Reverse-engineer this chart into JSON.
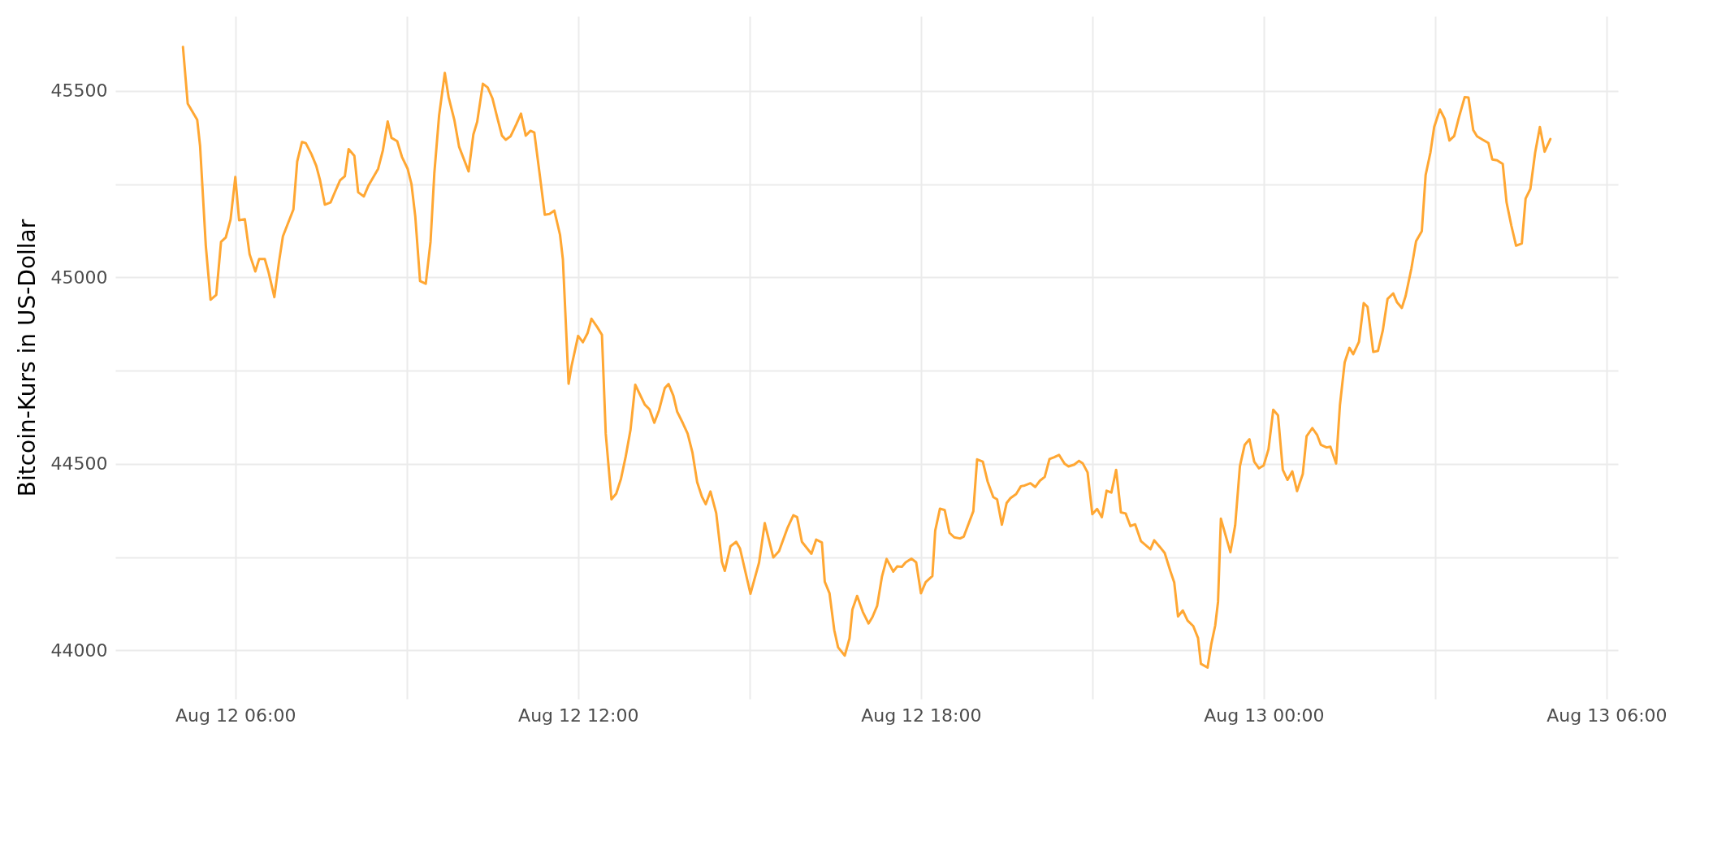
{
  "chart_data": {
    "type": "line",
    "ylabel": "Bitcoin-Kurs in US-Dollar",
    "x": [
      "--08-12T05:05",
      "--08-12T05:10",
      "--08-12T05:15",
      "--08-12T05:20",
      "--08-12T05:23",
      "--08-12T05:29",
      "--08-12T05:34",
      "--08-12T05:40",
      "--08-12T05:45",
      "--08-12T05:50",
      "--08-12T05:55",
      "--08-12T06:00",
      "--08-12T06:04",
      "--08-12T06:10",
      "--08-12T06:15",
      "--08-12T06:21",
      "--08-12T06:25",
      "--08-12T06:31",
      "--08-12T06:35",
      "--08-12T06:41",
      "--08-12T06:46",
      "--08-12T06:50",
      "--08-12T07:01",
      "--08-12T07:05",
      "--08-12T07:10",
      "--08-12T07:14",
      "--08-12T07:20",
      "--08-12T07:25",
      "--08-12T07:29",
      "--08-12T07:34",
      "--08-12T07:40",
      "--08-12T07:44",
      "--08-12T07:50",
      "--08-12T07:55",
      "--08-12T07:59",
      "--08-12T08:05",
      "--08-12T08:09",
      "--08-12T08:15",
      "--08-12T08:20",
      "--08-12T08:30",
      "--08-12T08:35",
      "--08-12T08:40",
      "--08-12T08:44",
      "--08-12T08:50",
      "--08-12T08:55",
      "--08-12T09:01",
      "--08-12T09:05",
      "--08-12T09:09",
      "--08-12T09:14",
      "--08-12T09:20",
      "--08-12T09:25",
      "--08-12T09:29",
      "--08-12T09:34",
      "--08-12T09:40",
      "--08-12T09:44",
      "--08-12T09:50",
      "--08-12T09:55",
      "--08-12T10:05",
      "--08-12T10:10",
      "--08-12T10:14",
      "--08-12T10:20",
      "--08-12T10:25",
      "--08-12T10:30",
      "--08-12T10:35",
      "--08-12T10:40",
      "--08-12T10:44",
      "--08-12T10:49",
      "--08-12T10:55",
      "--08-12T11:00",
      "--08-12T11:05",
      "--08-12T11:10",
      "--08-12T11:14",
      "--08-12T11:20",
      "--08-12T11:25",
      "--08-12T11:30",
      "--08-12T11:35",
      "--08-12T11:41",
      "--08-12T11:44",
      "--08-12T11:50",
      "--08-12T11:53",
      "--08-12T12:00",
      "--08-12T12:05",
      "--08-12T12:10",
      "--08-12T12:14",
      "--08-12T12:20",
      "--08-12T12:25",
      "--08-12T12:29",
      "--08-12T12:35",
      "--08-12T12:40",
      "--08-12T12:45",
      "--08-12T12:50",
      "--08-12T12:55",
      "--08-12T13:00",
      "--08-12T13:10",
      "--08-12T13:15",
      "--08-12T13:20",
      "--08-12T13:25",
      "--08-12T13:31",
      "--08-12T13:35",
      "--08-12T13:40",
      "--08-12T13:44",
      "--08-12T13:50",
      "--08-12T13:55",
      "--08-12T14:00",
      "--08-12T14:05",
      "--08-12T14:10",
      "--08-12T14:14",
      "--08-12T14:19",
      "--08-12T14:25",
      "--08-12T14:31",
      "--08-12T14:34",
      "--08-12T14:40",
      "--08-12T14:46",
      "--08-12T14:50",
      "--08-12T15:01",
      "--08-12T15:10",
      "--08-12T15:16",
      "--08-12T15:25",
      "--08-12T15:31",
      "--08-12T15:40",
      "--08-12T15:46",
      "--08-12T15:50",
      "--08-12T15:55",
      "--08-12T16:05",
      "--08-12T16:10",
      "--08-12T16:16",
      "--08-12T16:19",
      "--08-12T16:24",
      "--08-12T16:29",
      "--08-12T16:33",
      "--08-12T16:40",
      "--08-12T16:45",
      "--08-12T16:48",
      "--08-12T16:53",
      "--08-12T16:59",
      "--08-12T17:05",
      "--08-12T17:09",
      "--08-12T17:14",
      "--08-12T17:19",
      "--08-12T17:24",
      "--08-12T17:31",
      "--08-12T17:35",
      "--08-12T17:40",
      "--08-12T17:44",
      "--08-12T17:50",
      "--08-12T17:55",
      "--08-12T18:00",
      "--08-12T18:05",
      "--08-12T18:12",
      "--08-12T18:15",
      "--08-12T18:20",
      "--08-12T18:25",
      "--08-12T18:30",
      "--08-12T18:35",
      "--08-12T18:41",
      "--08-12T18:45",
      "--08-12T18:55",
      "--08-12T18:59",
      "--08-12T19:05",
      "--08-12T19:10",
      "--08-12T19:16",
      "--08-12T19:20",
      "--08-12T19:25",
      "--08-12T19:30",
      "--08-12T19:34",
      "--08-12T19:40",
      "--08-12T19:45",
      "--08-12T19:49",
      "--08-12T19:55",
      "--08-12T20:00",
      "--08-12T20:05",
      "--08-12T20:10",
      "--08-12T20:15",
      "--08-12T20:20",
      "--08-12T20:25",
      "--08-12T20:31",
      "--08-12T20:35",
      "--08-12T20:41",
      "--08-12T20:46",
      "--08-12T20:50",
      "--08-12T20:55",
      "--08-12T21:00",
      "--08-12T21:05",
      "--08-12T21:10",
      "--08-12T21:15",
      "--08-12T21:20",
      "--08-12T21:25",
      "--08-12T21:30",
      "--08-12T21:35",
      "--08-12T21:40",
      "--08-12T21:45",
      "--08-12T21:51",
      "--08-12T22:01",
      "--08-12T22:05",
      "--08-12T22:11",
      "--08-12T22:16",
      "--08-12T22:22",
      "--08-12T22:26",
      "--08-12T22:30",
      "--08-12T22:35",
      "--08-12T22:40",
      "--08-12T22:46",
      "--08-12T22:51",
      "--08-12T22:54",
      "--08-12T23:01",
      "--08-12T23:05",
      "--08-12T23:09",
      "--08-12T23:12",
      "--08-12T23:15",
      "--08-12T23:25",
      "--08-12T23:30",
      "--08-12T23:35",
      "--08-12T23:40",
      "--08-12T23:45",
      "--08-12T23:50",
      "--08-12T23:55",
      "--08-13T00:00",
      "--08-13T00:05",
      "--08-13T00:10",
      "--08-13T00:15",
      "--08-13T00:20",
      "--08-13T00:25",
      "--08-13T00:30",
      "--08-13T00:35",
      "--08-13T00:41",
      "--08-13T00:45",
      "--08-13T00:51",
      "--08-13T00:56",
      "--08-13T01:00",
      "--08-13T01:06",
      "--08-13T01:10",
      "--08-13T01:16",
      "--08-13T01:20",
      "--08-13T01:25",
      "--08-13T01:30",
      "--08-13T01:34",
      "--08-13T01:40",
      "--08-13T01:45",
      "--08-13T01:49",
      "--08-13T01:55",
      "--08-13T02:00",
      "--08-13T02:05",
      "--08-13T02:10",
      "--08-13T02:16",
      "--08-13T02:20",
      "--08-13T02:25",
      "--08-13T02:29",
      "--08-13T02:35",
      "--08-13T02:40",
      "--08-13T02:46",
      "--08-13T02:50",
      "--08-13T02:55",
      "--08-13T02:59",
      "--08-13T03:05",
      "--08-13T03:10",
      "--08-13T03:15",
      "--08-13T03:20",
      "--08-13T03:25",
      "--08-13T03:31",
      "--08-13T03:35",
      "--08-13T03:40",
      "--08-13T03:44",
      "--08-13T03:50",
      "--08-13T03:56",
      "--08-13T04:00",
      "--08-13T04:05",
      "--08-13T04:11",
      "--08-13T04:15",
      "--08-13T04:20",
      "--08-13T04:25",
      "--08-13T04:31",
      "--08-13T04:35",
      "--08-13T04:40",
      "--08-13T04:45",
      "--08-13T04:50",
      "--08-13T04:55",
      "--08-13T05:01"
    ],
    "series": [
      {
        "color": "#ffa733",
        "values": [
          45618,
          45466,
          45444,
          45422,
          45352,
          45085,
          44940,
          44953,
          45095,
          45107,
          45155,
          45269,
          45153,
          45156,
          45062,
          45016,
          45049,
          45049,
          45013,
          44947,
          45044,
          45110,
          45182,
          45311,
          45363,
          45360,
          45330,
          45299,
          45260,
          45195,
          45201,
          45225,
          45260,
          45271,
          45344,
          45326,
          45228,
          45217,
          45247,
          45291,
          45341,
          45418,
          45374,
          45365,
          45323,
          45291,
          45250,
          45163,
          44990,
          44983,
          45095,
          45279,
          45434,
          45548,
          45483,
          45422,
          45350,
          45284,
          45383,
          45417,
          45519,
          45509,
          45480,
          45429,
          45380,
          45369,
          45378,
          45410,
          45439,
          45380,
          45393,
          45388,
          45269,
          45168,
          45170,
          45179,
          45114,
          45048,
          44715,
          44761,
          44843,
          44826,
          44851,
          44889,
          44867,
          44846,
          44581,
          44405,
          44420,
          44460,
          44520,
          44591,
          44712,
          44659,
          44646,
          44610,
          44644,
          44703,
          44714,
          44683,
          44640,
          44609,
          44581,
          44531,
          44451,
          44412,
          44392,
          44426,
          44368,
          44237,
          44213,
          44279,
          44291,
          44273,
          44152,
          44235,
          44341,
          44249,
          44266,
          44329,
          44362,
          44357,
          44291,
          44259,
          44297,
          44289,
          44184,
          44153,
          44054,
          44008,
          43986,
          44032,
          44109,
          44146,
          44103,
          44072,
          44089,
          44119,
          44197,
          44245,
          44211,
          44225,
          44224,
          44236,
          44246,
          44236,
          44153,
          44183,
          44199,
          44321,
          44380,
          44376,
          44315,
          44303,
          44300,
          44305,
          44373,
          44512,
          44506,
          44453,
          44411,
          44405,
          44337,
          44395,
          44408,
          44419,
          44440,
          44442,
          44448,
          44438,
          44455,
          44465,
          44513,
          44518,
          44524,
          44500,
          44493,
          44498,
          44508,
          44501,
          44477,
          44365,
          44379,
          44357,
          44428,
          44423,
          44484,
          44370,
          44367,
          44333,
          44338,
          44293,
          44271,
          44295,
          44277,
          44261,
          44212,
          44182,
          44091,
          44107,
          44080,
          44065,
          44033,
          43964,
          43954,
          44018,
          44066,
          44130,
          44353,
          44263,
          44335,
          44494,
          44551,
          44566,
          44506,
          44488,
          44496,
          44539,
          44645,
          44630,
          44484,
          44457,
          44480,
          44427,
          44473,
          44574,
          44596,
          44578,
          44551,
          44544,
          44546,
          44501,
          44657,
          44772,
          44811,
          44794,
          44827,
          44931,
          44921,
          44800,
          44803,
          44857,
          44942,
          44957,
          44933,
          44918,
          44950,
          45023,
          45097,
          45124,
          45274,
          45334,
          45403,
          45450,
          45425,
          45367,
          45379,
          45429,
          45483,
          45482,
          45395,
          45378,
          45369,
          45360,
          45316,
          45314,
          45304,
          45201,
          45139,
          45085,
          45091,
          45211,
          45237,
          45334,
          45403,
          45337,
          45371
        ]
      }
    ],
    "xlim": [
      "--08-12T03:54",
      "--08-13T06:12"
    ],
    "xticks": [
      {
        "value": "--08-12T06:00",
        "label": "Aug 12 06:00"
      },
      {
        "value": "--08-12T09:00",
        "label": null
      },
      {
        "value": "--08-12T12:00",
        "label": "Aug 12 12:00"
      },
      {
        "value": "--08-12T15:00",
        "label": null
      },
      {
        "value": "--08-12T18:00",
        "label": "Aug 12 18:00"
      },
      {
        "value": "--08-12T21:00",
        "label": null
      },
      {
        "value": "--08-13T00:00",
        "label": "Aug 13 00:00"
      },
      {
        "value": "--08-13T03:00",
        "label": null
      },
      {
        "value": "--08-13T06:00",
        "label": "Aug 13 06:00"
      }
    ],
    "ylim": [
      43870,
      45700
    ],
    "yticks": [
      44000,
      {
        "value": 44250,
        "label": null
      },
      44500,
      {
        "value": 44750,
        "label": null
      },
      45000,
      {
        "value": 45250,
        "label": null
      },
      45500
    ],
    "grid": true
  }
}
